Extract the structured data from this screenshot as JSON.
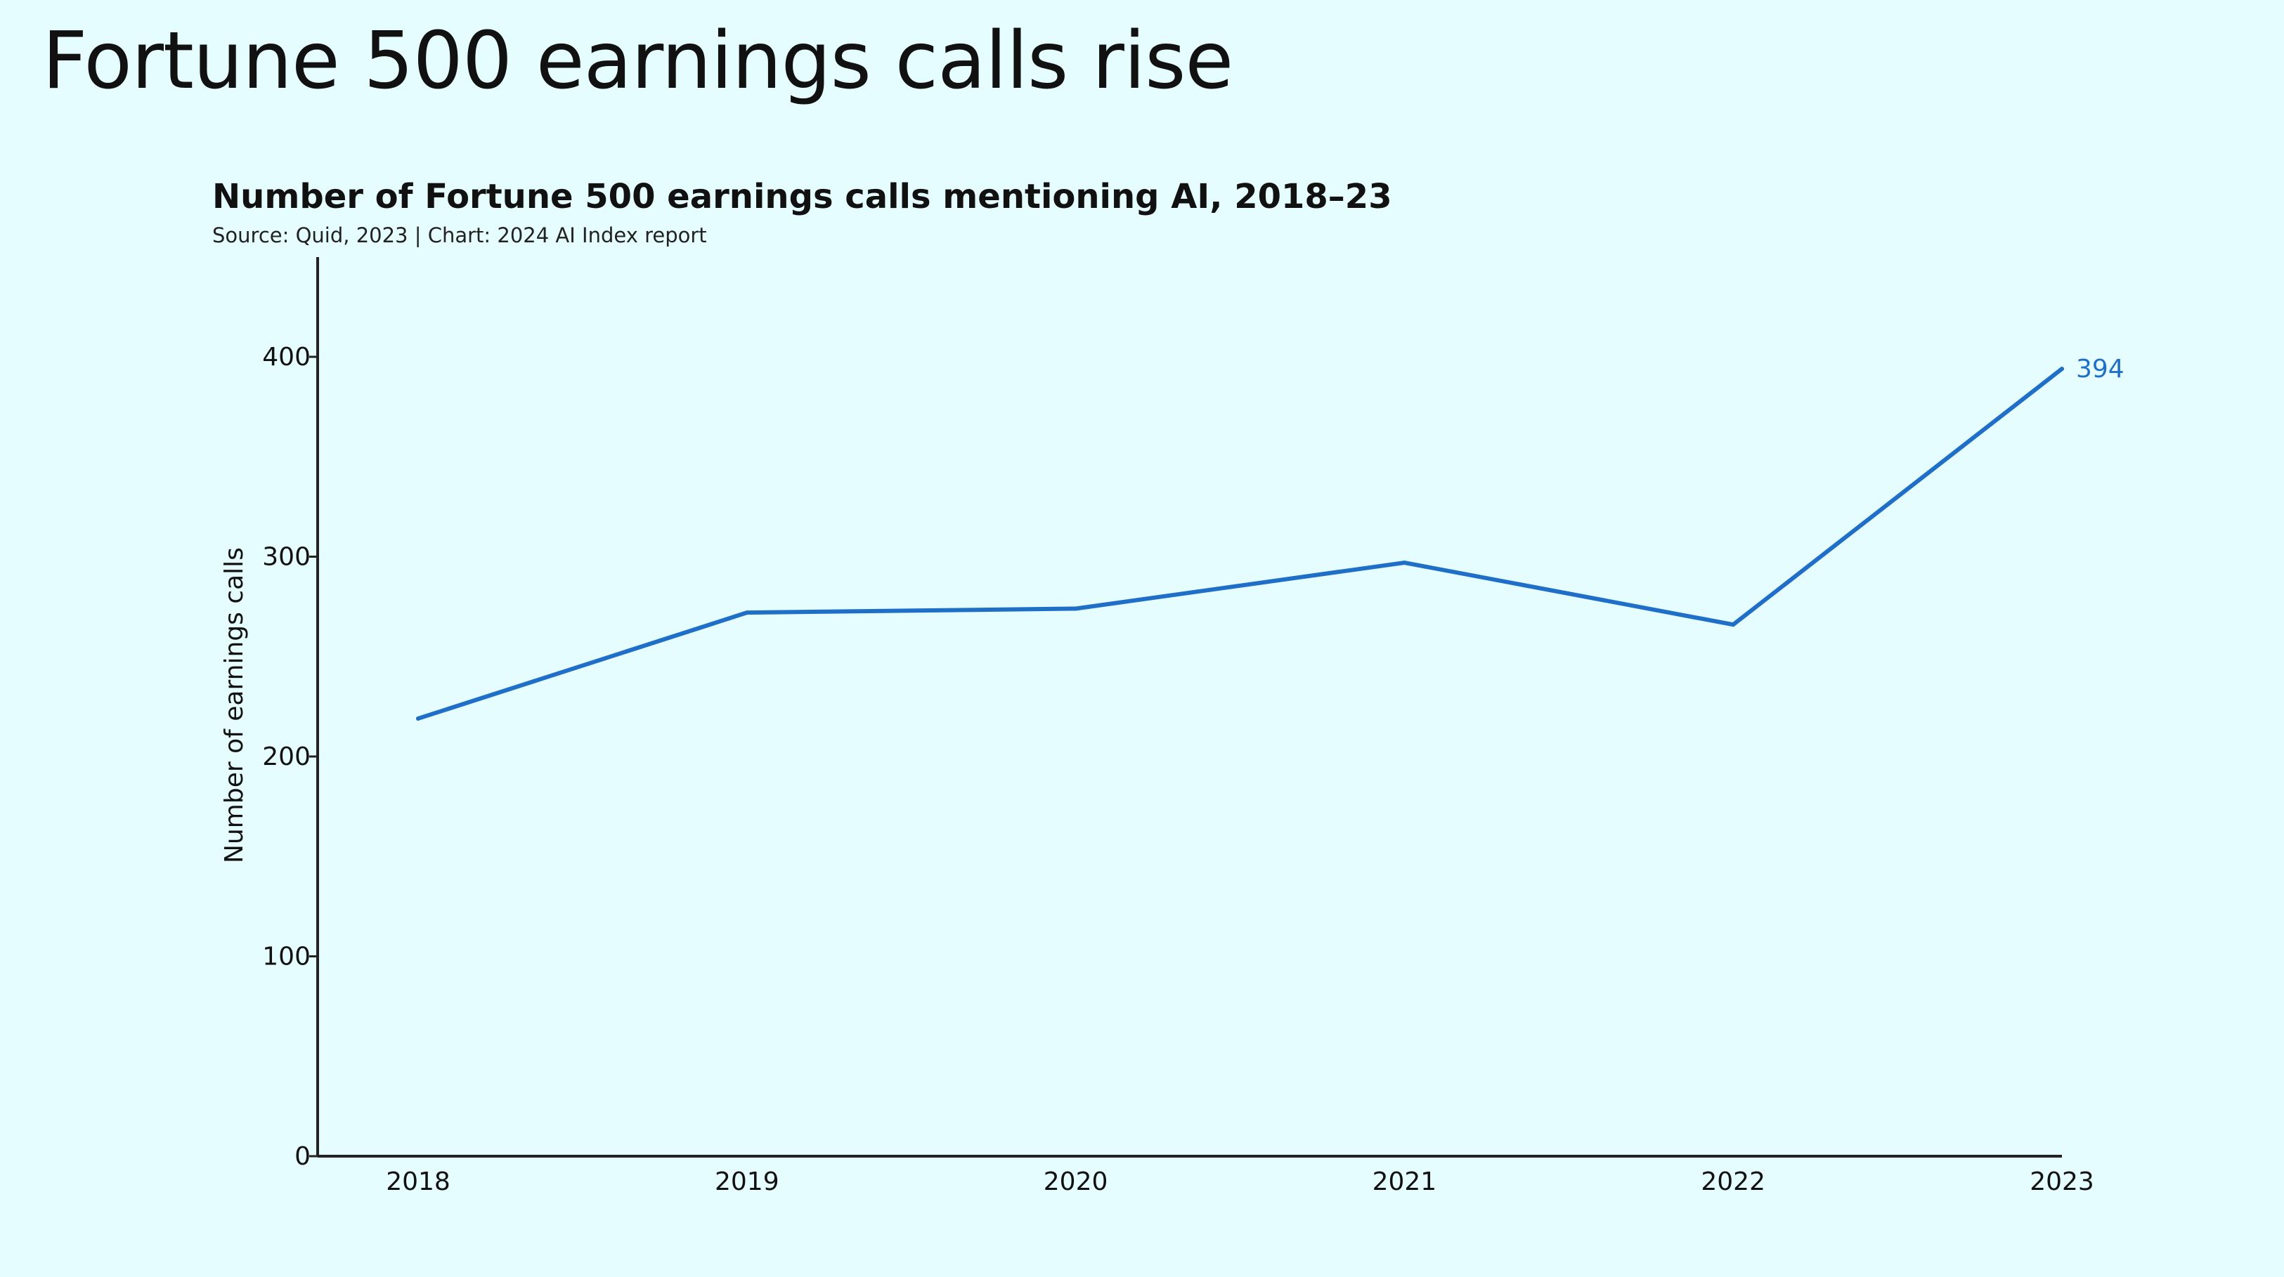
{
  "slide": {
    "title": "Fortune 500 earnings calls rise"
  },
  "chart_data": {
    "type": "line",
    "title": "Number of Fortune 500 earnings calls mentioning AI, 2018–23",
    "subtitle": "Source: Quid, 2023 | Chart: 2024 AI Index report",
    "xlabel": "",
    "ylabel": "Number of earnings calls",
    "categories": [
      "2018",
      "2019",
      "2020",
      "2021",
      "2022",
      "2023"
    ],
    "series": [
      {
        "values": [
          219,
          272,
          274,
          297,
          266,
          394
        ]
      }
    ],
    "data_labels": [
      {
        "category": "2023",
        "text": "394"
      }
    ],
    "y_ticks": [
      0,
      100,
      200,
      300,
      400
    ],
    "ylim": [
      0,
      450
    ],
    "grid": false,
    "colors": {
      "line": "#1f6fc9",
      "axis": "#222222",
      "tick_text": "#111111",
      "label": "#1f6fc9"
    }
  }
}
